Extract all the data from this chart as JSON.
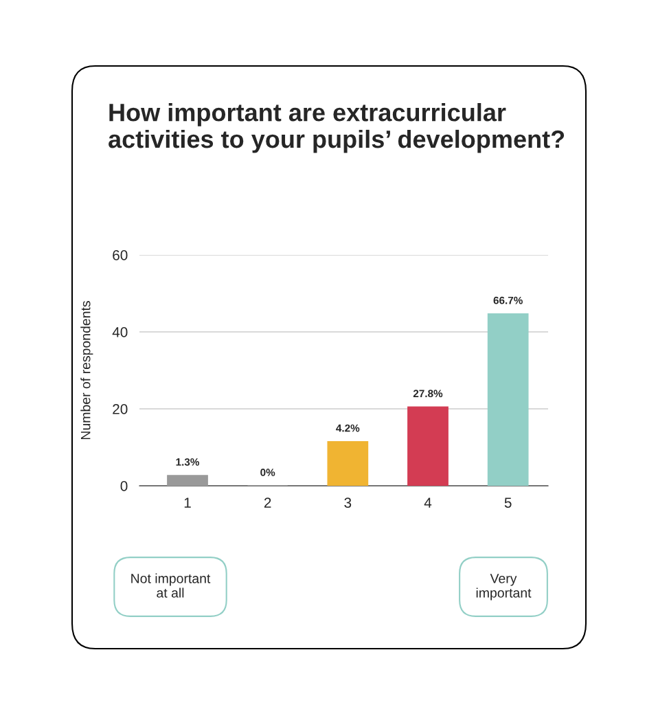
{
  "chart_data": {
    "type": "bar",
    "title": "How important are extracurricular activities to your pupils’ development?",
    "ylabel": "Number of respondents",
    "categories": [
      "1",
      "2",
      "3",
      "4",
      "5"
    ],
    "values": [
      2.7,
      0,
      11.5,
      20.5,
      44.7
    ],
    "colors": [
      "#999999",
      "#999999",
      "#f0b432",
      "#d33c53",
      "#92cfc6"
    ],
    "ylim": [
      0,
      60
    ],
    "yticks": [
      0,
      20,
      40,
      60
    ],
    "grid": "y",
    "annotations": [
      {
        "text": "1.3%",
        "x": "1",
        "y": 2.7
      },
      {
        "text": "0%",
        "x": "2",
        "y": 0
      },
      {
        "text": "4.2%",
        "x": "3",
        "y": 11.5
      },
      {
        "text": "27.8%",
        "x": "4",
        "y": 20.5
      },
      {
        "text": "66.7%",
        "x": "5",
        "y": 44.7
      },
      "Not important at all",
      "Very important"
    ]
  }
}
